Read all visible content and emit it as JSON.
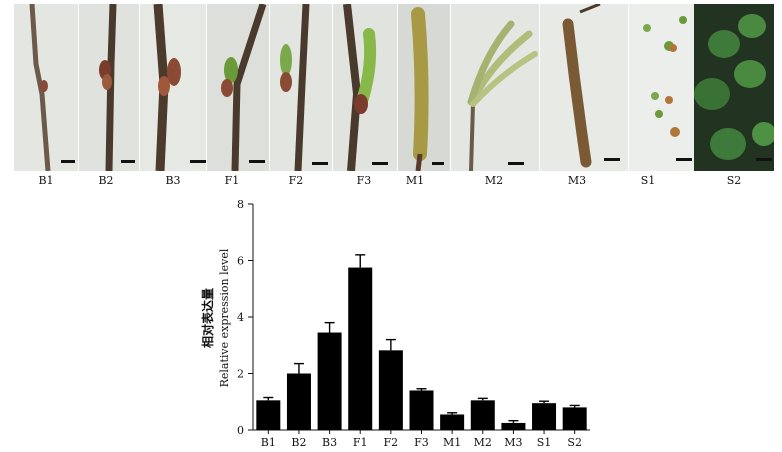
{
  "panels": [
    "B1",
    "B2",
    "B3",
    "F1",
    "F2",
    "F3",
    "M1",
    "M2",
    "M3",
    "S1",
    "S2"
  ],
  "chart_data": {
    "type": "bar",
    "categories": [
      "B1",
      "B2",
      "B3",
      "F1",
      "F2",
      "F3",
      "M1",
      "M2",
      "M3",
      "S1",
      "S2"
    ],
    "values": [
      1.05,
      2.0,
      3.45,
      5.75,
      2.82,
      1.4,
      0.55,
      1.05,
      0.25,
      0.95,
      0.8
    ],
    "errors": [
      0.1,
      0.35,
      0.35,
      0.45,
      0.38,
      0.06,
      0.06,
      0.07,
      0.08,
      0.07,
      0.07
    ],
    "ylim": [
      0,
      8
    ],
    "yticks": [
      0,
      2,
      4,
      6,
      8
    ],
    "ylabel_cn": "相对表达量",
    "ylabel_en": "Relative expression level",
    "xlabel": "",
    "title": ""
  },
  "colors": {
    "bar": "#000000",
    "axis": "#111111"
  }
}
